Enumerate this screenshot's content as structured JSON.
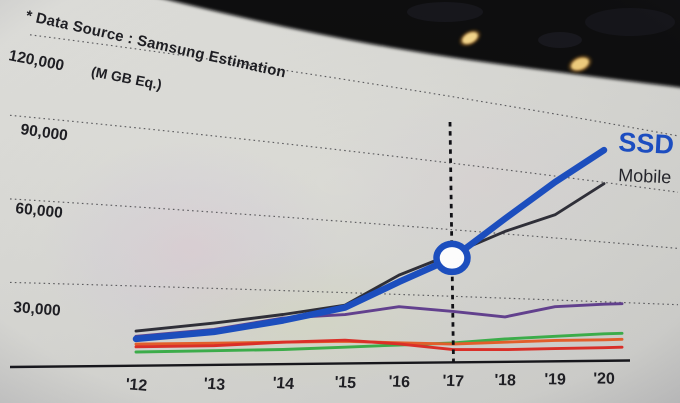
{
  "source_note": "* Data Source : Samsung Estimation",
  "chart_data": {
    "type": "line",
    "unit_label": "(M GB Eq.)",
    "x_tick_labels": [
      "'12",
      "'13",
      "'14",
      "'15",
      "'16",
      "'17",
      "'18",
      "'19",
      "'20"
    ],
    "y_ticks": [
      {
        "value": 120000,
        "label": "120,000"
      },
      {
        "value": 90000,
        "label": "90,000"
      },
      {
        "value": 60000,
        "label": "60,000"
      },
      {
        "value": 30000,
        "label": "30,000"
      }
    ],
    "ylim": [
      0,
      130000
    ],
    "grid": "dotted horizontal lines",
    "legend_position": "labels at right end of lines",
    "series": [
      {
        "name": "SSD",
        "color": "#1c4fc0",
        "emphasis": "thick",
        "values": [
          10000,
          13000,
          18000,
          24000,
          36000,
          48000,
          68000,
          88000,
          107000
        ]
      },
      {
        "name": "Mobile",
        "color": "#2f2f38",
        "values": [
          13000,
          16500,
          20500,
          25000,
          39000,
          50000,
          62000,
          72000,
          90000
        ]
      },
      {
        "name": "",
        "color": "#63418f",
        "values": [
          11000,
          14000,
          19000,
          21000,
          25000,
          23500,
          21500,
          27000,
          29000
        ]
      },
      {
        "name": "",
        "color": "#3cb04a",
        "values": [
          5000,
          5500,
          6000,
          7000,
          8000,
          9000,
          11000,
          12500,
          14000
        ]
      },
      {
        "name": "",
        "color": "#e8602a",
        "values": [
          8000,
          8500,
          9000,
          9500,
          9000,
          8500,
          9500,
          10500,
          11000
        ]
      },
      {
        "name": "",
        "color": "#df2f27",
        "values": [
          7000,
          7500,
          9000,
          10000,
          8500,
          6000,
          6000,
          6500,
          7000
        ]
      }
    ],
    "annotations": {
      "crossover_year": "'17",
      "marker": "blue circle on SSD line at '17",
      "vertical_line": "black dotted line at '17"
    }
  },
  "photo": {
    "screen_background": "#d9d9d4",
    "ceiling_color": "#08080a",
    "venue_light_color": "#e8b35a"
  }
}
